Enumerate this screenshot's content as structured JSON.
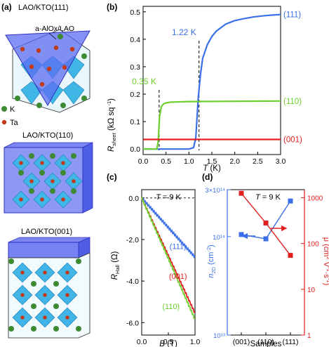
{
  "colors": {
    "blue": "#3b6fe8",
    "green": "#6ccf2c",
    "red": "#e02020",
    "axis": "#000000",
    "slab": "#5c6cf0",
    "slab_edge": "#3030c0",
    "octa": "#3fb6e6",
    "octa_dark": "#1d7fb4",
    "k_atom": "#3e8a34",
    "ta_atom": "#c23a1a"
  },
  "panel_a": {
    "label": "(a)",
    "title_111": "LAO/KTO(111)",
    "overlayer_label": "a-AlOx/LAO",
    "title_110": "LAO/KTO(110)",
    "title_001": "LAO/KTO(001)",
    "legend": [
      {
        "name": "K",
        "color": "#3e8a34"
      },
      {
        "name": "Ta",
        "color": "#c23a1a"
      }
    ]
  },
  "chart_data": [
    {
      "panel": "(b)",
      "type": "line",
      "ylabel": "R_sheet (kΩ sq⁻¹)",
      "xlabel": "T (K)",
      "xlim": [
        0,
        3.0
      ],
      "ylim": [
        -0.02,
        0.52
      ],
      "xticks": [
        "0.0",
        "0.5",
        "1.0",
        "1.5",
        "2.0",
        "2.5",
        "3.0"
      ],
      "yticks": [
        "0.0",
        "0.1",
        "0.2",
        "0.3",
        "0.4",
        "0.5"
      ],
      "annotations": [
        {
          "text": "1.22 K",
          "x": 1.22,
          "color": "#3b6fe8"
        },
        {
          "text": "0.35 K",
          "x": 0.35,
          "color": "#6ccf2c"
        }
      ],
      "series": [
        {
          "name": "(111)",
          "color": "#3b6fe8",
          "x": [
            0.0,
            1.0,
            1.1,
            1.15,
            1.2,
            1.25,
            1.3,
            1.4,
            1.5,
            1.6,
            1.8,
            2.0,
            2.2,
            2.4,
            2.6,
            2.8,
            3.0
          ],
          "y": [
            0.0,
            0.0,
            0.005,
            0.04,
            0.18,
            0.27,
            0.33,
            0.38,
            0.41,
            0.43,
            0.455,
            0.468,
            0.475,
            0.481,
            0.485,
            0.488,
            0.49
          ]
        },
        {
          "name": "(110)",
          "color": "#6ccf2c",
          "x": [
            0.0,
            0.3,
            0.33,
            0.36,
            0.4,
            0.45,
            0.5,
            0.6,
            1.0,
            2.0,
            3.0
          ],
          "y": [
            0.0,
            0.0,
            0.03,
            0.12,
            0.155,
            0.165,
            0.168,
            0.171,
            0.173,
            0.174,
            0.175
          ]
        },
        {
          "name": "(001)",
          "color": "#e02020",
          "x": [
            0.0,
            3.0
          ],
          "y": [
            0.035,
            0.035
          ]
        }
      ]
    },
    {
      "panel": "(c)",
      "type": "line",
      "title": "T = 9 K",
      "ylabel": "R_Hall (Ω)",
      "xlabel": "B (T)",
      "xlim": [
        0,
        1.0
      ],
      "ylim": [
        -6.6,
        0.4
      ],
      "xticks": [
        "0.0",
        "0.5",
        "1.0"
      ],
      "yticks": [
        "0.0",
        "-2.0",
        "-4.0",
        "-6.0"
      ],
      "series": [
        {
          "name": "(111)",
          "color": "#3b6fe8",
          "x": [
            0.0,
            1.0
          ],
          "y": [
            0.0,
            -2.85
          ]
        },
        {
          "name": "(001)",
          "color": "#e02020",
          "x": [
            0.0,
            1.0
          ],
          "y": [
            0.0,
            -5.55
          ]
        },
        {
          "name": "(110)",
          "color": "#6ccf2c",
          "x": [
            0.0,
            1.0
          ],
          "y": [
            0.0,
            -5.85
          ]
        }
      ]
    },
    {
      "panel": "(d)",
      "type": "line",
      "title": "T = 9 K",
      "xlabel": "Samples",
      "categories": [
        "(001)",
        "(110)",
        "(111)"
      ],
      "left_axis": {
        "label": "n_2D (cm⁻²)",
        "scale": "log",
        "range": [
          10000000000000.0,
          300000000000000.0
        ],
        "ticks": [
          "10¹³",
          "10¹⁴",
          "3×10¹⁴"
        ],
        "color": "#3b6fe8"
      },
      "right_axis": {
        "label": "μ (cm² V⁻¹ s⁻¹)",
        "scale": "log",
        "range": [
          1,
          1500
        ],
        "ticks": [
          "1",
          "10",
          "100",
          "1000"
        ],
        "color": "#e02020"
      },
      "series": [
        {
          "name": "n_2D",
          "axis": "left",
          "color": "#3b6fe8",
          "values": [
            105000000000000.0,
            95000000000000.0,
            230000000000000.0
          ]
        },
        {
          "name": "μ",
          "axis": "right",
          "color": "#e02020",
          "values": [
            1250,
            280,
            55
          ]
        }
      ]
    }
  ]
}
